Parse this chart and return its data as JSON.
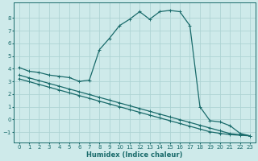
{
  "xlabel": "Humidex (Indice chaleur)",
  "bg_color": "#ceeaea",
  "grid_color": "#aed4d4",
  "line_color": "#1a6b6b",
  "xlim": [
    -0.5,
    23.5
  ],
  "ylim": [
    -1.8,
    9.2
  ],
  "yticks": [
    -1,
    0,
    1,
    2,
    3,
    4,
    5,
    6,
    7,
    8
  ],
  "xticks": [
    0,
    1,
    2,
    3,
    4,
    5,
    6,
    7,
    8,
    9,
    10,
    11,
    12,
    13,
    14,
    15,
    16,
    17,
    18,
    19,
    20,
    21,
    22,
    23
  ],
  "series1_x": [
    0,
    1,
    2,
    3,
    4,
    5,
    6,
    7,
    8,
    9,
    10,
    11,
    12,
    13,
    14,
    15,
    16,
    17,
    18,
    19,
    20,
    21,
    22,
    23
  ],
  "series1_y": [
    4.1,
    3.8,
    3.7,
    3.5,
    3.4,
    3.3,
    3.0,
    3.1,
    5.5,
    6.4,
    7.4,
    7.9,
    8.5,
    7.9,
    8.5,
    8.6,
    8.5,
    7.4,
    1.0,
    -0.1,
    -0.2,
    -0.5,
    -1.1,
    -1.3
  ],
  "series2_x": [
    0,
    1,
    2,
    3,
    4,
    5,
    6,
    7,
    8,
    9,
    10,
    11,
    12,
    13,
    14,
    15,
    16,
    17,
    18,
    19,
    20,
    21,
    22,
    23
  ],
  "series2_y": [
    3.5,
    3.28,
    3.06,
    2.84,
    2.62,
    2.4,
    2.18,
    1.96,
    1.74,
    1.52,
    1.3,
    1.08,
    0.86,
    0.64,
    0.42,
    0.2,
    -0.02,
    -0.24,
    -0.46,
    -0.68,
    -0.9,
    -1.12,
    -1.2,
    -1.3
  ],
  "series3_x": [
    0,
    1,
    2,
    3,
    4,
    5,
    6,
    7,
    8,
    9,
    10,
    11,
    12,
    13,
    14,
    15,
    16,
    17,
    18,
    19,
    20,
    21,
    22,
    23
  ],
  "series3_y": [
    3.2,
    2.98,
    2.76,
    2.54,
    2.32,
    2.1,
    1.88,
    1.66,
    1.44,
    1.22,
    1.0,
    0.78,
    0.56,
    0.34,
    0.12,
    -0.1,
    -0.32,
    -0.54,
    -0.76,
    -0.98,
    -1.1,
    -1.2,
    -1.25,
    -1.3
  ],
  "marker_size": 2.5,
  "line_width": 0.9,
  "tick_fontsize": 5.0,
  "xlabel_fontsize": 6.0
}
